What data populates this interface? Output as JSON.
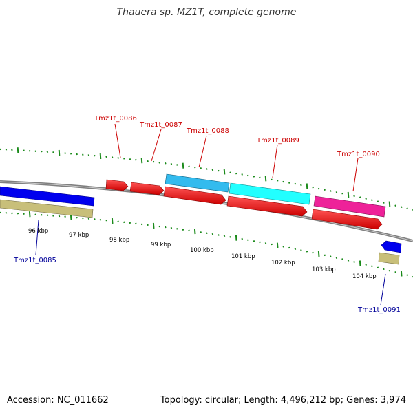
{
  "title": "Thauera sp. MZ1T, complete genome",
  "footer": {
    "accession": "Accession: NC_011662",
    "summary": "Topology: circular; Length: 4,496,212 bp; Genes: 3,974"
  },
  "colors": {
    "backbone": "#808080",
    "tick": "#1a8a1a",
    "label_red": "#cc0000",
    "label_blue": "#000099",
    "cds": "#ff0000",
    "gene_blue": "#0000ee",
    "gene_khaki": "#c8bf7a",
    "gene_skyblue": "#33bbee",
    "gene_cyan": "#22ffff",
    "gene_magenta": "#ee2299"
  },
  "ticks": {
    "kbp_labels": [
      "96 kbp",
      "97 kbp",
      "98 kbp",
      "99 kbp",
      "100 kbp",
      "101 kbp",
      "102 kbp",
      "103 kbp",
      "104 kbp"
    ]
  },
  "genes": {
    "upper": [
      {
        "locus": "Tmz1t_0086"
      },
      {
        "locus": "Tmz1t_0087"
      },
      {
        "locus": "Tmz1t_0088"
      },
      {
        "locus": "Tmz1t_0089"
      },
      {
        "locus": "Tmz1t_0090"
      }
    ],
    "lower": [
      {
        "locus": "Tmz1t_0085"
      },
      {
        "locus": "Tmz1t_0091"
      }
    ]
  }
}
